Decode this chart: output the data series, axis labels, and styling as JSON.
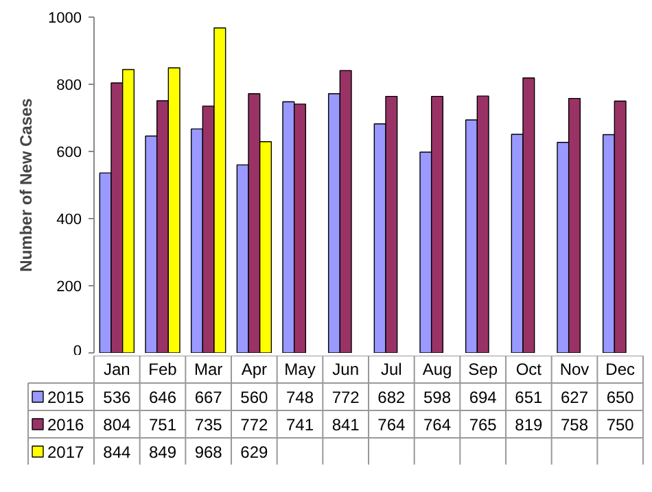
{
  "chart_data": {
    "type": "bar",
    "ylabel": "Number of New Cases",
    "categories": [
      "Jan",
      "Feb",
      "Mar",
      "Apr",
      "May",
      "Jun",
      "Jul",
      "Aug",
      "Sep",
      "Oct",
      "Nov",
      "Dec"
    ],
    "series": [
      {
        "name": "2015",
        "color": "#9999ff",
        "values": [
          536,
          646,
          667,
          560,
          748,
          772,
          682,
          598,
          694,
          651,
          627,
          650
        ]
      },
      {
        "name": "2016",
        "color": "#993366",
        "values": [
          804,
          751,
          735,
          772,
          741,
          841,
          764,
          764,
          765,
          819,
          758,
          750
        ]
      },
      {
        "name": "2017",
        "color": "#ffff00",
        "values": [
          844,
          849,
          968,
          629,
          null,
          null,
          null,
          null,
          null,
          null,
          null,
          null
        ]
      }
    ],
    "ylim": [
      0,
      1000
    ],
    "yticks": [
      0,
      200,
      400,
      600,
      800,
      1000
    ],
    "grid": false,
    "data_labels": true,
    "legend": "bottom left"
  }
}
